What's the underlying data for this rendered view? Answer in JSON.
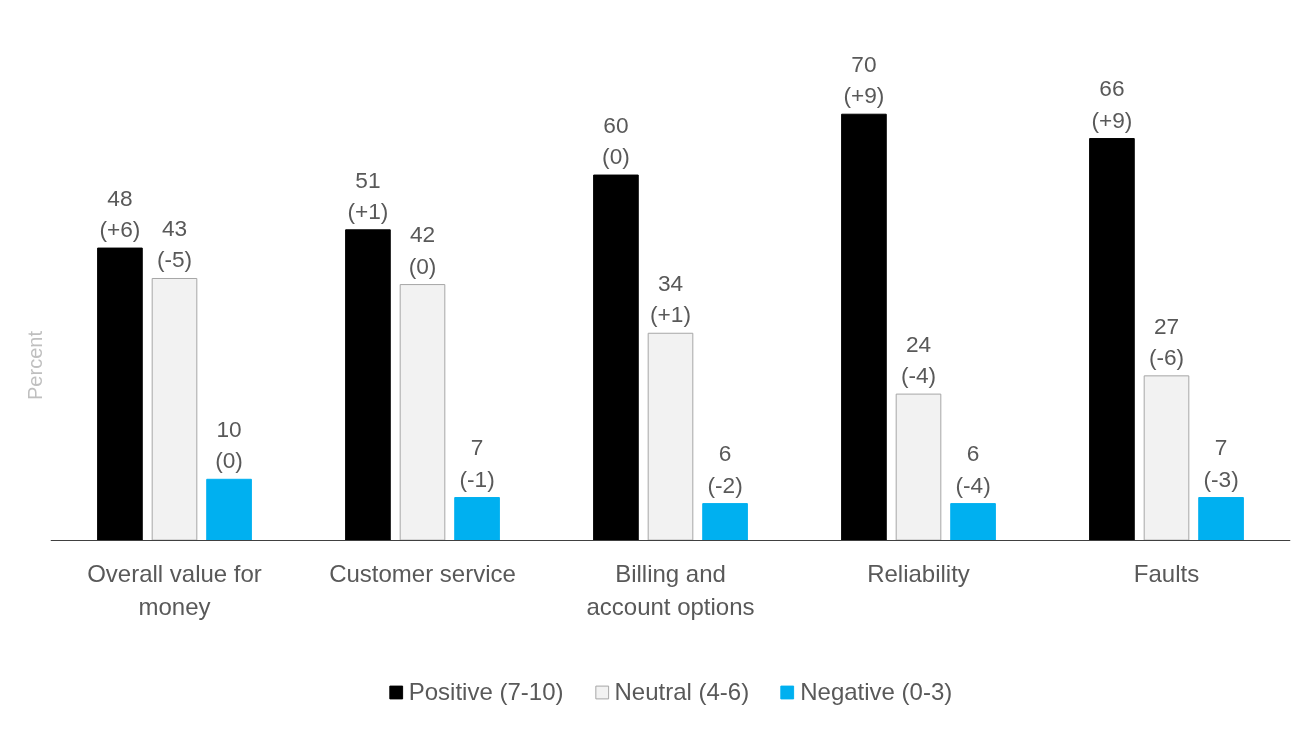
{
  "chart_data": {
    "type": "bar",
    "ylabel": "Percent",
    "categories": [
      "Overall value for money",
      "Customer service",
      "Billing and account options",
      "Reliability",
      "Faults"
    ],
    "series": [
      {
        "name": "Positive (7-10)",
        "color": "#000000",
        "values": [
          48,
          51,
          60,
          70,
          66
        ],
        "value_labels": [
          "48\n(+6)",
          "51\n(+1)",
          "60\n(0)",
          "70\n(+9)",
          "66\n(+9)"
        ]
      },
      {
        "name": "Neutral (4-6)",
        "color": "#f2f2f2",
        "values": [
          43,
          42,
          34,
          24,
          27
        ],
        "value_labels": [
          "43\n(-5)",
          "42\n(0)",
          "34\n(+1)",
          "24\n(-4)",
          "27\n(-6)"
        ]
      },
      {
        "name": "Negative (0-3)",
        "color": "#00b0f0",
        "values": [
          10,
          7,
          6,
          6,
          7
        ],
        "value_labels": [
          "10\n(0)",
          "7\n(-1)",
          "6\n(-2)",
          "6\n(-4)",
          "7\n(-3)"
        ]
      }
    ],
    "legend": "bottom",
    "grid": false
  }
}
